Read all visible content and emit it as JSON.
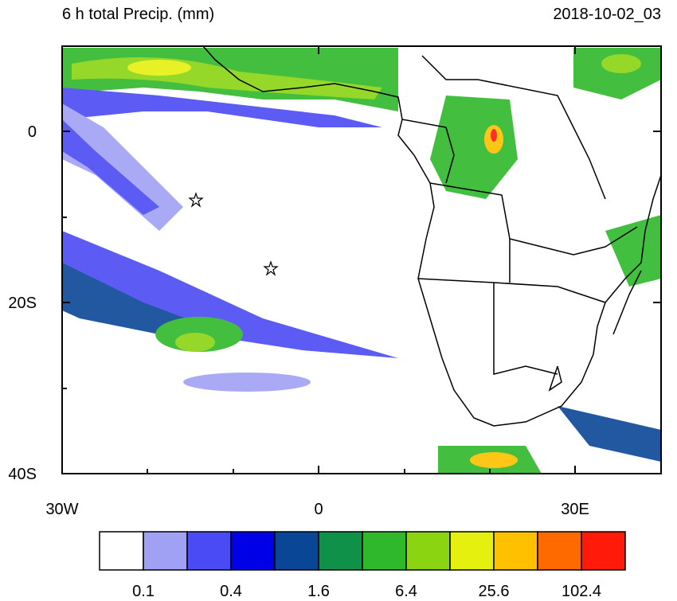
{
  "header": {
    "title": "6 h total Precip. (mm)",
    "timestamp": "2018-10-02_03"
  },
  "axes": {
    "y_labels": [
      "0",
      "20S",
      "40S"
    ],
    "x_labels": [
      "30W",
      "0",
      "30E"
    ]
  },
  "colorbar": {
    "colors": [
      "#ffffff",
      "#a0a0f5",
      "#4b4bf5",
      "#0000e6",
      "#0a4696",
      "#10914a",
      "#2fb82b",
      "#8ad412",
      "#e5f00e",
      "#ffc000",
      "#ff6a00",
      "#ff1a0a"
    ],
    "labels": [
      "0.1",
      "0.4",
      "1.6",
      "6.4",
      "25.6",
      "102.4"
    ]
  }
}
